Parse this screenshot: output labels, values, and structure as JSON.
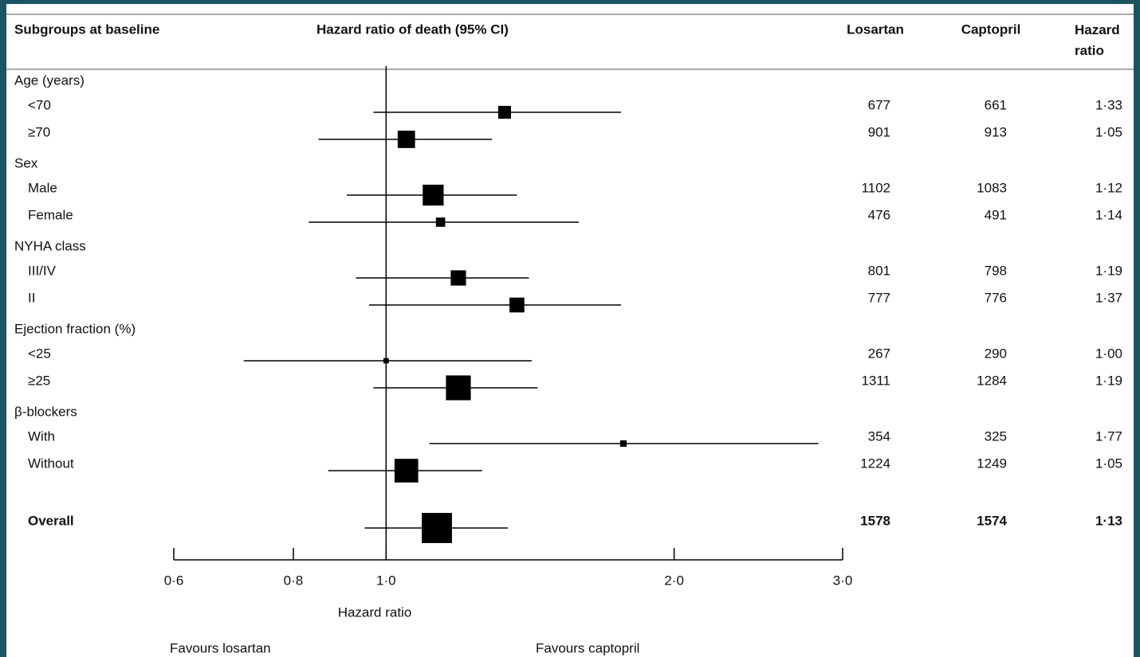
{
  "chart_data": {
    "type": "forest",
    "columns": [
      "Subgroups at baseline",
      "Hazard ratio of death (95% CI)",
      "Losartan",
      "Captopril",
      "Hazard ratio"
    ],
    "rows": [
      {
        "label": "Age (years)"
      },
      {
        "label": "<70",
        "losartan": 677,
        "captopril": 661,
        "hr": 1.33,
        "hr_label": "1·33",
        "ci": [
          0.97,
          1.76
        ]
      },
      {
        "label": "≥70",
        "losartan": 901,
        "captopril": 913,
        "hr": 1.05,
        "hr_label": "1·05",
        "ci": [
          0.85,
          1.29
        ]
      },
      {
        "label": "Sex"
      },
      {
        "label": "Male",
        "losartan": 1102,
        "captopril": 1083,
        "hr": 1.12,
        "hr_label": "1·12",
        "ci": [
          0.91,
          1.37
        ]
      },
      {
        "label": "Female",
        "losartan": 476,
        "captopril": 491,
        "hr": 1.14,
        "hr_label": "1·14",
        "ci": [
          0.83,
          1.59
        ]
      },
      {
        "label": "NYHA class"
      },
      {
        "label": "III/IV",
        "losartan": 801,
        "captopril": 798,
        "hr": 1.19,
        "hr_label": "1·19",
        "ci": [
          0.93,
          1.41
        ]
      },
      {
        "label": "II",
        "losartan": 777,
        "captopril": 776,
        "hr": 1.37,
        "hr_label": "1·37",
        "ci": [
          0.96,
          1.76
        ]
      },
      {
        "label": "Ejection fraction (%)"
      },
      {
        "label": "<25",
        "losartan": 267,
        "captopril": 290,
        "hr": 1.0,
        "hr_label": "1·00",
        "ci": [
          0.71,
          1.42
        ]
      },
      {
        "label": "≥25",
        "losartan": 1311,
        "captopril": 1284,
        "hr": 1.19,
        "hr_label": "1·19",
        "ci": [
          0.97,
          1.44
        ]
      },
      {
        "label": "β-blockers"
      },
      {
        "label": "With",
        "losartan": 354,
        "captopril": 325,
        "hr": 1.77,
        "hr_label": "1·77",
        "ci": [
          1.11,
          2.83
        ]
      },
      {
        "label": "Without",
        "losartan": 1224,
        "captopril": 1249,
        "hr": 1.05,
        "hr_label": "1·05",
        "ci": [
          0.87,
          1.26
        ]
      },
      {
        "label": "Overall",
        "losartan": 1578,
        "captopril": 1574,
        "hr": 1.13,
        "hr_label": "1·13",
        "ci": [
          0.95,
          1.34
        ],
        "bold": true
      }
    ],
    "x_label": "Hazard ratio",
    "annotations": [
      "Favours losartan",
      "Favours captopril"
    ],
    "xscale": "log",
    "xlim": [
      0.6,
      3.0
    ],
    "xticks": [
      {
        "value": 0.6,
        "label": "0·6"
      },
      {
        "value": 0.8,
        "label": "0·8"
      },
      {
        "value": 1.0,
        "label": "1·0"
      },
      {
        "value": 2.0,
        "label": "2·0"
      },
      {
        "value": 3.0,
        "label": "3·0"
      }
    ],
    "reference": 1.0,
    "color": "#000000"
  }
}
